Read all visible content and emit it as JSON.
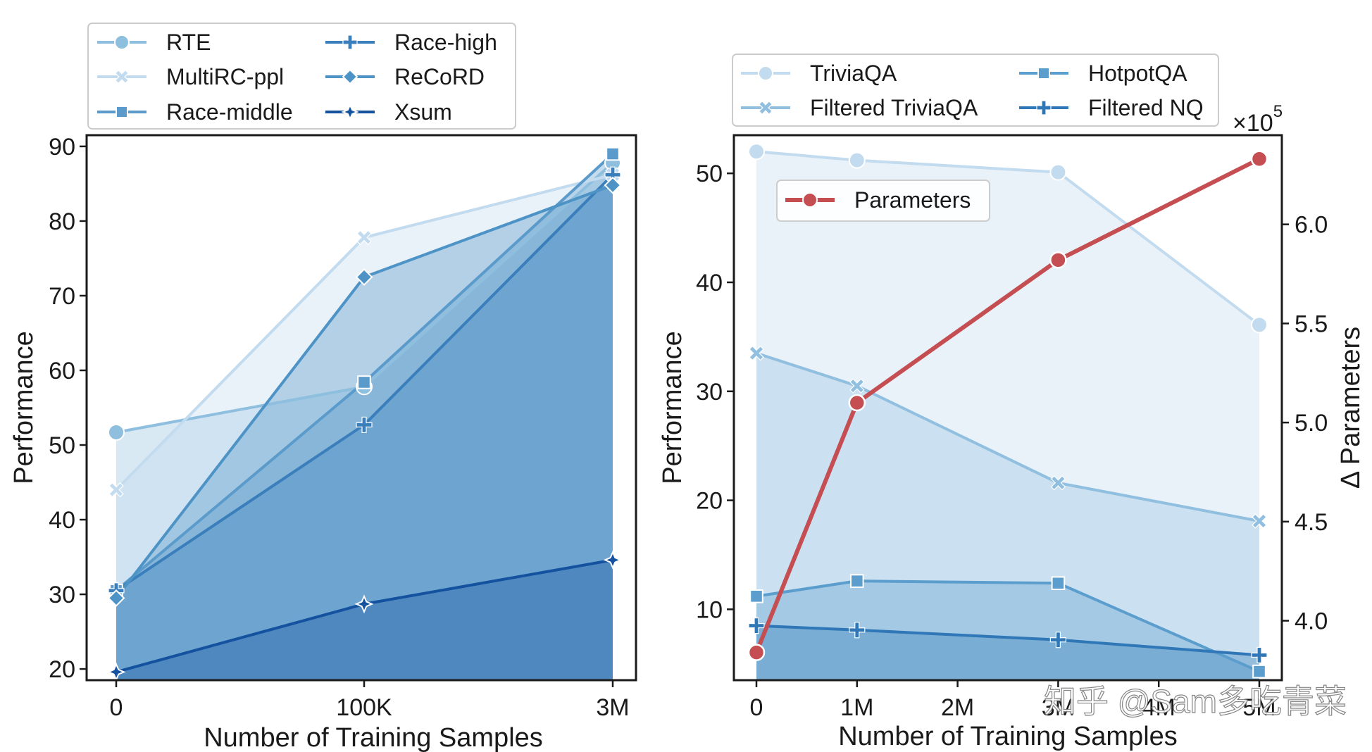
{
  "colors": {
    "RTE": "#8fbfdf",
    "MultiRC-ppl": "#c2dbef",
    "Race-middle": "#5a9bcb",
    "Race-high": "#3a7fbc",
    "ReCoRD": "#4e93c6",
    "Xsum": "#1452a0",
    "TriviaQA": "#c2dbef",
    "Filtered TriviaQA": "#91bfe0",
    "HotpotQA": "#5b9dcd",
    "Filtered NQ": "#2f77b6",
    "Parameters": "#c44e52"
  },
  "chart_data": [
    {
      "type": "area",
      "title": "",
      "xlabel": "Number of Training Samples",
      "ylabel": "Performance",
      "categories": [
        "0",
        "100K",
        "3M"
      ],
      "ylim": [
        18.5,
        91.5
      ],
      "yticks": [
        20,
        30,
        40,
        50,
        60,
        70,
        80,
        90
      ],
      "legend": "top",
      "series": [
        {
          "name": "RTE",
          "marker": "circle",
          "values": [
            51.7,
            57.8,
            87.8
          ]
        },
        {
          "name": "MultiRC-ppl",
          "marker": "x",
          "values": [
            44.0,
            77.8,
            86.2
          ]
        },
        {
          "name": "Race-middle",
          "marker": "square",
          "values": [
            30.5,
            58.4,
            89.0
          ]
        },
        {
          "name": "Race-high",
          "marker": "plus",
          "values": [
            30.5,
            52.7,
            86.2
          ]
        },
        {
          "name": "ReCoRD",
          "marker": "diamond",
          "values": [
            29.5,
            72.5,
            84.8
          ]
        },
        {
          "name": "Xsum",
          "marker": "star",
          "values": [
            19.6,
            28.7,
            34.6
          ]
        }
      ]
    },
    {
      "type": "area",
      "title": "",
      "xlabel": "Number of Training Samples",
      "ylabel": "Performance",
      "x": [
        0,
        1,
        3,
        5
      ],
      "xticks": [
        "0",
        "1M",
        "2M",
        "3M",
        "4M",
        "5M"
      ],
      "ylim": [
        3.5,
        53.5
      ],
      "yticks": [
        10,
        20,
        30,
        40,
        50
      ],
      "legend": "top",
      "series": [
        {
          "name": "TriviaQA",
          "marker": "circle",
          "values": [
            52.0,
            51.2,
            50.1,
            36.1
          ]
        },
        {
          "name": "Filtered TriviaQA",
          "marker": "x",
          "values": [
            33.5,
            30.5,
            21.6,
            18.1
          ]
        },
        {
          "name": "HotpotQA",
          "marker": "square",
          "values": [
            11.2,
            12.6,
            12.4,
            4.3
          ]
        },
        {
          "name": "Filtered NQ",
          "marker": "plus",
          "values": [
            8.5,
            8.1,
            7.2,
            5.8
          ]
        }
      ],
      "secondary_axis": {
        "label": "Δ Parameters",
        "offset_label": "×10",
        "offset_exp": "5",
        "ylim": [
          3.7,
          6.45
        ],
        "yticks": [
          "4.0",
          "4.5",
          "5.0",
          "5.5",
          "6.0"
        ],
        "legend": "upper-left",
        "series": [
          {
            "name": "Parameters",
            "marker": "circle",
            "x": [
              0,
              1,
              3,
              5
            ],
            "values": [
              3.84,
              5.1,
              5.82,
              6.33
            ]
          }
        ]
      }
    }
  ],
  "watermark": "知乎 @Sam多吃青菜"
}
